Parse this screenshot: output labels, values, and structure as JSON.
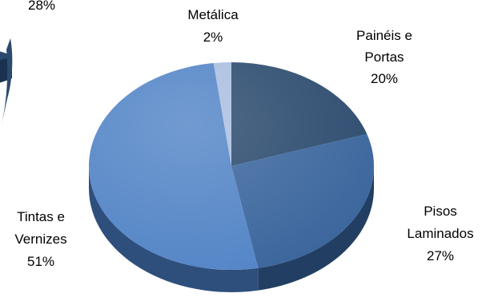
{
  "chart_data": [
    {
      "type": "pie",
      "note_visible": "partially cropped second pie on the left edge",
      "slice_labels": [
        {
          "pct_text": "28%"
        }
      ]
    },
    {
      "type": "pie",
      "style": "3d",
      "categories": [
        "Painéis e Portas",
        "Pisos Laminados",
        "Tintas e Vernizes",
        "Metálica"
      ],
      "values": [
        20,
        27,
        51,
        2
      ],
      "slices": [
        {
          "name_lines": [
            "Painéis e",
            "Portas"
          ],
          "pct_text": "20%",
          "value": 20,
          "color": "#2b4a6e",
          "side_color": "#1b3150"
        },
        {
          "name_lines": [
            "Pisos",
            "Laminados"
          ],
          "pct_text": "27%",
          "value": 27,
          "color": "#3a659c",
          "side_color": "#223f63"
        },
        {
          "name_lines": [
            "Tintas e",
            "Vernizes"
          ],
          "pct_text": "51%",
          "value": 51,
          "color": "#5284c6",
          "side_color": "#2e4f7c"
        },
        {
          "name_lines": [
            "Metálica"
          ],
          "pct_text": "2%",
          "value": 2,
          "color": "#a9bee0",
          "side_color": "#6e84a8"
        }
      ]
    }
  ]
}
